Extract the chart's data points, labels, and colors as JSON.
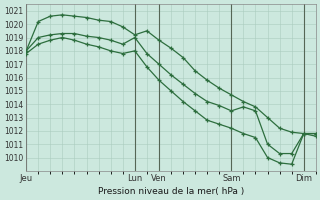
{
  "title": "Pression niveau de la mer( hPa )",
  "bg_color": "#cce8de",
  "grid_color": "#aaccbe",
  "line_color": "#2d6e3e",
  "ylim": [
    1009.0,
    1021.5
  ],
  "yticks": [
    1010,
    1011,
    1012,
    1013,
    1014,
    1015,
    1016,
    1017,
    1018,
    1019,
    1020,
    1021
  ],
  "day_labels": [
    "Jeu",
    "Lun",
    "Ven",
    "Sam",
    "Dim"
  ],
  "day_x": [
    0,
    9,
    11,
    17,
    23
  ],
  "n_points": 25,
  "series_high_x": [
    0,
    1,
    2,
    3,
    4,
    5,
    6,
    7,
    8,
    9,
    10,
    11,
    12,
    13,
    14,
    15,
    16,
    17,
    18,
    19,
    20,
    21,
    22,
    23,
    24
  ],
  "series_high_y": [
    1018.0,
    1020.2,
    1020.6,
    1020.7,
    1020.6,
    1020.5,
    1020.3,
    1020.2,
    1019.8,
    1019.2,
    1019.5,
    1018.8,
    1018.2,
    1017.5,
    1016.5,
    1015.8,
    1015.2,
    1014.7,
    1014.2,
    1013.8,
    1013.0,
    1012.2,
    1011.9,
    1011.8,
    1011.8
  ],
  "series_mid_x": [
    0,
    1,
    2,
    3,
    4,
    5,
    6,
    7,
    8,
    9,
    10,
    11,
    12,
    13,
    14,
    15,
    16,
    17,
    18,
    19,
    20,
    21,
    22,
    23,
    24
  ],
  "series_mid_y": [
    1018.0,
    1019.0,
    1019.2,
    1019.3,
    1019.3,
    1019.1,
    1019.0,
    1018.8,
    1018.5,
    1019.0,
    1017.8,
    1017.0,
    1016.2,
    1015.5,
    1014.8,
    1014.2,
    1013.9,
    1013.5,
    1013.8,
    1013.5,
    1011.0,
    1010.3,
    1010.3,
    1011.8,
    1011.8
  ],
  "series_low_x": [
    0,
    1,
    2,
    3,
    4,
    5,
    6,
    7,
    8,
    9,
    10,
    11,
    12,
    13,
    14,
    15,
    16,
    17,
    18,
    19,
    20,
    21,
    22,
    23,
    24
  ],
  "series_low_y": [
    1017.8,
    1018.5,
    1018.8,
    1019.0,
    1018.8,
    1018.5,
    1018.3,
    1018.0,
    1017.8,
    1018.0,
    1016.8,
    1015.8,
    1015.0,
    1014.2,
    1013.5,
    1012.8,
    1012.5,
    1012.2,
    1011.8,
    1011.5,
    1010.0,
    1009.6,
    1009.5,
    1011.8,
    1011.6
  ]
}
